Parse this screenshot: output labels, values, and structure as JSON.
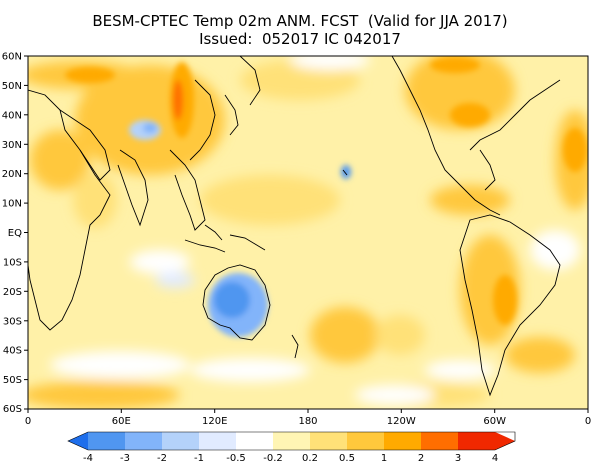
{
  "title": "BESM-CPTEC Temp 02m ANM. FCST  (Valid for JJA 2017)",
  "subtitle": "Issued:  052017 IC 042017",
  "lat_labels": [
    "60N",
    "50N",
    "40N",
    "30N",
    "20N",
    "10N",
    "EQ",
    "10S",
    "20S",
    "30S",
    "40S",
    "50S",
    "60S"
  ],
  "lon_labels": [
    "0",
    "60E",
    "120E",
    "180",
    "120W",
    "60W",
    "0"
  ],
  "legend": {
    "labels": [
      "-4",
      "-3",
      "-2",
      "-1",
      "-0.5",
      "-0.2",
      "0.2",
      "0.5",
      "1",
      "2",
      "3",
      "4"
    ],
    "colors": [
      "#1e6eeb",
      "#5096f0",
      "#82b4fa",
      "#b4d2fa",
      "#e1ebff",
      "#ffffff",
      "#fff5b4",
      "#ffe178",
      "#ffc83c",
      "#ffaa00",
      "#ff6e00",
      "#f02800"
    ]
  }
}
